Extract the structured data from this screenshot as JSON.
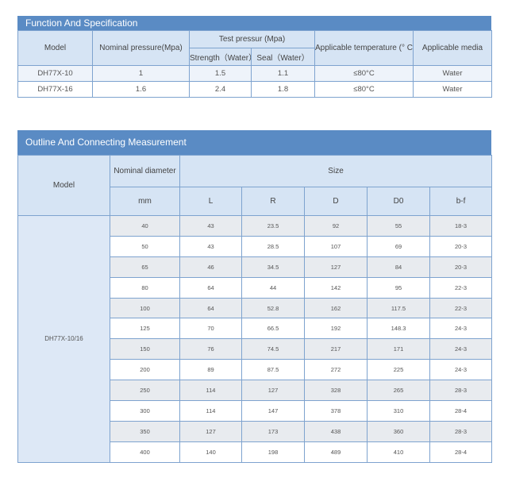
{
  "spec": {
    "title": "Function And Specification",
    "headers": {
      "model": "Model",
      "nominal_pressure": "Nominal pressure(Mpa)",
      "test_pressure": "Test pressur (Mpa)",
      "strength": "Strength（Water）",
      "seal": "Seal（Water）",
      "temperature": "Applicable temperature (° C)",
      "media": "Applicable media"
    },
    "rows": [
      {
        "model": "DH77X-10",
        "nominal": "1",
        "strength": "1.5",
        "seal": "1.1",
        "temp": "≤80°C",
        "media": "Water"
      },
      {
        "model": "DH77X-16",
        "nominal": "1.6",
        "strength": "2.4",
        "seal": "1.8",
        "temp": "≤80°C",
        "media": "Water"
      }
    ]
  },
  "outline": {
    "title": "Outline And Connecting Measurement",
    "headers": {
      "model": "Model",
      "nominal_diameter": "Nominal diameter",
      "size": "Size",
      "mm": "mm",
      "L": "L",
      "R": "R",
      "D": "D",
      "D0": "D0",
      "bf": "b-f"
    },
    "model": "DH77X-10/16",
    "rows": [
      [
        "40",
        "43",
        "23.5",
        "92",
        "55",
        "18-3"
      ],
      [
        "50",
        "43",
        "28.5",
        "107",
        "69",
        "20-3"
      ],
      [
        "65",
        "46",
        "34.5",
        "127",
        "84",
        "20-3"
      ],
      [
        "80",
        "64",
        "44",
        "142",
        "95",
        "22-3"
      ],
      [
        "100",
        "64",
        "52.8",
        "162",
        "117.5",
        "22-3"
      ],
      [
        "125",
        "70",
        "66.5",
        "192",
        "148.3",
        "24-3"
      ],
      [
        "150",
        "76",
        "74.5",
        "217",
        "171",
        "24-3"
      ],
      [
        "200",
        "89",
        "87.5",
        "272",
        "225",
        "24-3"
      ],
      [
        "250",
        "114",
        "127",
        "328",
        "265",
        "28-3"
      ],
      [
        "300",
        "114",
        "147",
        "378",
        "310",
        "28-4"
      ],
      [
        "350",
        "127",
        "173",
        "438",
        "360",
        "28-3"
      ],
      [
        "400",
        "140",
        "198",
        "489",
        "410",
        "28-4"
      ]
    ]
  }
}
